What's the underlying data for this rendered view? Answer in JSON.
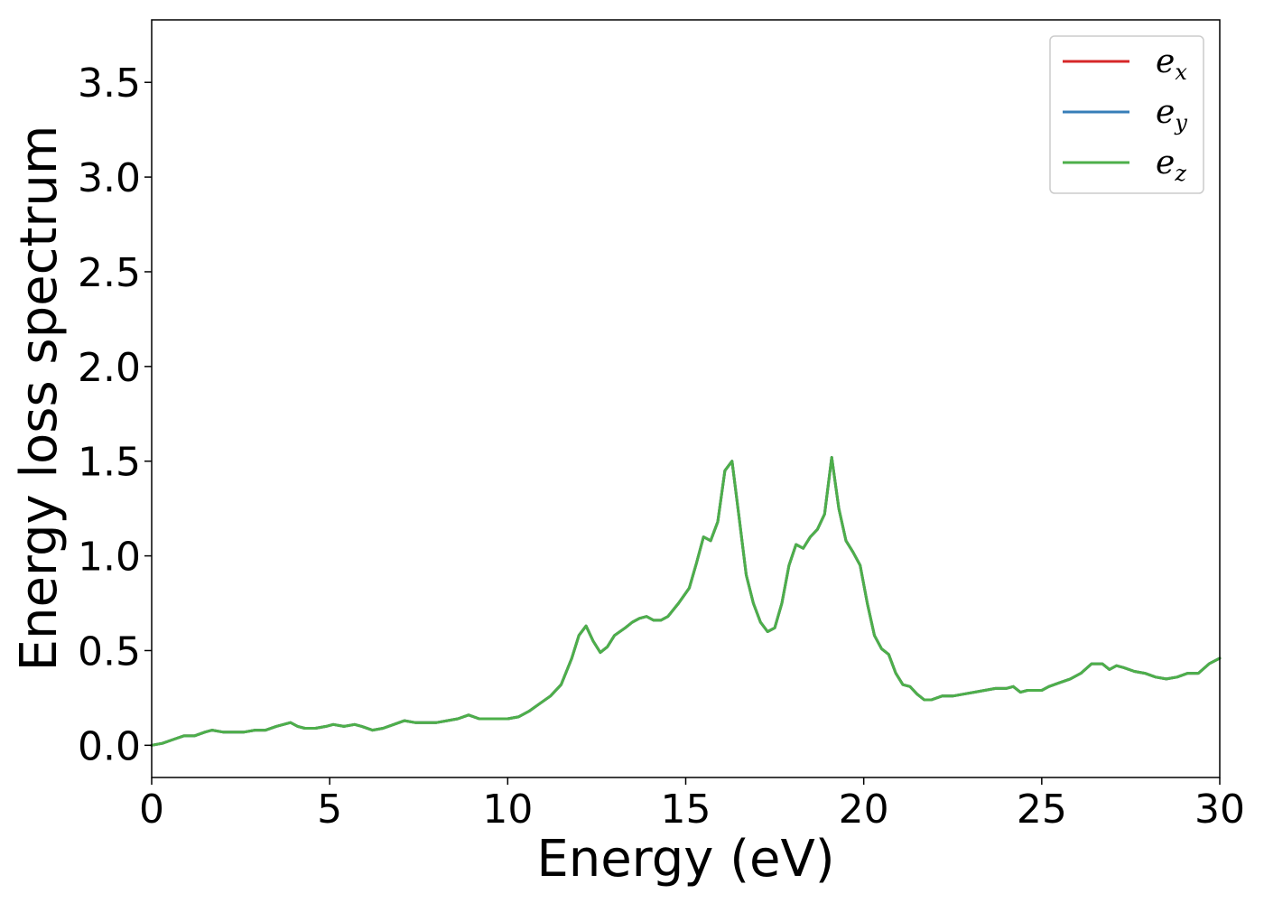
{
  "chart_data": {
    "type": "line",
    "title": "",
    "xlabel": "Energy (eV)",
    "ylabel": "Energy loss spectrum",
    "xlim": [
      0,
      30
    ],
    "ylim": [
      -0.17,
      3.83
    ],
    "xticks": [
      0,
      5,
      10,
      15,
      20,
      25,
      30
    ],
    "xtick_labels": [
      "0",
      "5",
      "10",
      "15",
      "20",
      "25",
      "30"
    ],
    "yticks": [
      0.0,
      0.5,
      1.0,
      1.5,
      2.0,
      2.5,
      3.0,
      3.5
    ],
    "ytick_labels": [
      "0.0",
      "0.5",
      "1.0",
      "1.5",
      "2.0",
      "2.5",
      "3.0",
      "3.5"
    ],
    "grid": false,
    "legend_position": "top-right",
    "series": [
      {
        "name": "e",
        "subscript": "x",
        "color": "#d62728",
        "x": [
          0,
          0.3,
          0.6,
          0.9,
          1.2,
          1.5,
          1.7,
          2.0,
          2.3,
          2.6,
          2.9,
          3.2,
          3.5,
          3.7,
          3.9,
          4.1,
          4.3,
          4.6,
          4.9,
          5.1,
          5.4,
          5.7,
          5.9,
          6.2,
          6.5,
          6.8,
          7.1,
          7.4,
          7.7,
          8.0,
          8.3,
          8.6,
          8.9,
          9.2,
          9.5,
          9.8,
          10.0,
          10.3,
          10.6,
          10.9,
          11.2,
          11.5,
          11.8,
          12.0,
          12.2,
          12.4,
          12.6,
          12.8,
          13.0,
          13.3,
          13.5,
          13.7,
          13.9,
          14.1,
          14.3,
          14.5,
          14.8,
          15.1,
          15.3,
          15.5,
          15.7,
          15.9,
          16.1,
          16.3,
          16.5,
          16.7,
          16.9,
          17.1,
          17.3,
          17.5,
          17.7,
          17.9,
          18.1,
          18.3,
          18.5,
          18.7,
          18.9,
          19.1,
          19.3,
          19.5,
          19.7,
          19.9,
          20.1,
          20.3,
          20.5,
          20.7,
          20.9,
          21.1,
          21.3,
          21.5,
          21.7,
          21.9,
          22.2,
          22.5,
          22.8,
          23.1,
          23.4,
          23.7,
          24.0,
          24.2,
          24.4,
          24.6,
          24.8,
          25.0,
          25.2,
          25.5,
          25.8,
          26.1,
          26.4,
          26.7,
          26.9,
          27.1,
          27.3,
          27.6,
          27.9,
          28.2,
          28.5,
          28.8,
          29.1,
          29.4,
          29.7,
          30.0
        ],
        "y": [
          0.0,
          0.01,
          0.03,
          0.05,
          0.05,
          0.07,
          0.08,
          0.07,
          0.07,
          0.07,
          0.08,
          0.08,
          0.1,
          0.11,
          0.12,
          0.1,
          0.09,
          0.09,
          0.1,
          0.11,
          0.1,
          0.11,
          0.1,
          0.08,
          0.09,
          0.11,
          0.13,
          0.12,
          0.12,
          0.12,
          0.13,
          0.14,
          0.16,
          0.14,
          0.14,
          0.14,
          0.14,
          0.15,
          0.18,
          0.22,
          0.26,
          0.32,
          0.46,
          0.58,
          0.63,
          0.55,
          0.49,
          0.52,
          0.58,
          0.62,
          0.65,
          0.67,
          0.68,
          0.66,
          0.66,
          0.68,
          0.75,
          0.83,
          0.96,
          1.1,
          1.08,
          1.18,
          1.45,
          1.5,
          1.2,
          0.9,
          0.75,
          0.65,
          0.6,
          0.62,
          0.75,
          0.95,
          1.06,
          1.04,
          1.1,
          1.14,
          1.22,
          1.52,
          1.25,
          1.08,
          1.02,
          0.95,
          0.75,
          0.58,
          0.51,
          0.48,
          0.38,
          0.32,
          0.31,
          0.27,
          0.24,
          0.24,
          0.26,
          0.26,
          0.27,
          0.28,
          0.29,
          0.3,
          0.3,
          0.31,
          0.28,
          0.29,
          0.29,
          0.29,
          0.31,
          0.33,
          0.35,
          0.38,
          0.43,
          0.43,
          0.4,
          0.42,
          0.41,
          0.39,
          0.38,
          0.36,
          0.35,
          0.36,
          0.38,
          0.38,
          0.43,
          0.46
        ]
      },
      {
        "name": "e",
        "subscript": "y",
        "color": "#377eb8",
        "x": [
          0,
          0.3,
          0.6,
          0.9,
          1.2,
          1.5,
          1.7,
          2.0,
          2.3,
          2.6,
          2.9,
          3.2,
          3.5,
          3.7,
          3.9,
          4.1,
          4.3,
          4.6,
          4.9,
          5.1,
          5.4,
          5.7,
          5.9,
          6.2,
          6.5,
          6.8,
          7.1,
          7.4,
          7.7,
          8.0,
          8.3,
          8.6,
          8.9,
          9.2,
          9.5,
          9.8,
          10.0,
          10.3,
          10.6,
          10.9,
          11.2,
          11.5,
          11.8,
          12.0,
          12.2,
          12.4,
          12.6,
          12.8,
          13.0,
          13.3,
          13.5,
          13.7,
          13.9,
          14.1,
          14.3,
          14.5,
          14.8,
          15.1,
          15.3,
          15.5,
          15.7,
          15.9,
          16.1,
          16.3,
          16.5,
          16.7,
          16.9,
          17.1,
          17.3,
          17.5,
          17.7,
          17.9,
          18.1,
          18.3,
          18.5,
          18.7,
          18.9,
          19.1,
          19.3,
          19.5,
          19.7,
          19.9,
          20.1,
          20.3,
          20.5,
          20.7,
          20.9,
          21.1,
          21.3,
          21.5,
          21.7,
          21.9,
          22.2,
          22.5,
          22.8,
          23.1,
          23.4,
          23.7,
          24.0,
          24.2,
          24.4,
          24.6,
          24.8,
          25.0,
          25.2,
          25.5,
          25.8,
          26.1,
          26.4,
          26.7,
          26.9,
          27.1,
          27.3,
          27.6,
          27.9,
          28.2,
          28.5,
          28.8,
          29.1,
          29.4,
          29.7,
          30.0
        ],
        "y": [
          0.0,
          0.01,
          0.03,
          0.05,
          0.05,
          0.07,
          0.08,
          0.07,
          0.07,
          0.07,
          0.08,
          0.08,
          0.1,
          0.11,
          0.12,
          0.1,
          0.09,
          0.09,
          0.1,
          0.11,
          0.1,
          0.11,
          0.1,
          0.08,
          0.09,
          0.11,
          0.13,
          0.12,
          0.12,
          0.12,
          0.13,
          0.14,
          0.16,
          0.14,
          0.14,
          0.14,
          0.14,
          0.15,
          0.18,
          0.22,
          0.26,
          0.32,
          0.46,
          0.58,
          0.63,
          0.55,
          0.49,
          0.52,
          0.58,
          0.62,
          0.65,
          0.67,
          0.68,
          0.66,
          0.66,
          0.68,
          0.75,
          0.83,
          0.96,
          1.1,
          1.08,
          1.18,
          1.45,
          1.5,
          1.2,
          0.9,
          0.75,
          0.65,
          0.6,
          0.62,
          0.75,
          0.95,
          1.06,
          1.04,
          1.1,
          1.14,
          1.22,
          1.52,
          1.25,
          1.08,
          1.02,
          0.95,
          0.75,
          0.58,
          0.51,
          0.48,
          0.38,
          0.32,
          0.31,
          0.27,
          0.24,
          0.24,
          0.26,
          0.26,
          0.27,
          0.28,
          0.29,
          0.3,
          0.3,
          0.31,
          0.28,
          0.29,
          0.29,
          0.29,
          0.31,
          0.33,
          0.35,
          0.38,
          0.43,
          0.43,
          0.4,
          0.42,
          0.41,
          0.39,
          0.38,
          0.36,
          0.35,
          0.36,
          0.38,
          0.38,
          0.43,
          0.46
        ]
      },
      {
        "name": "e",
        "subscript": "z",
        "color": "#4daf4a",
        "x": [
          0,
          0.3,
          0.6,
          0.9,
          1.2,
          1.5,
          1.7,
          2.0,
          2.3,
          2.6,
          2.9,
          3.2,
          3.5,
          3.7,
          3.9,
          4.1,
          4.3,
          4.6,
          4.9,
          5.1,
          5.4,
          5.7,
          5.9,
          6.2,
          6.5,
          6.8,
          7.1,
          7.4,
          7.7,
          8.0,
          8.3,
          8.6,
          8.9,
          9.2,
          9.5,
          9.8,
          10.0,
          10.3,
          10.6,
          10.9,
          11.2,
          11.5,
          11.8,
          12.0,
          12.2,
          12.4,
          12.6,
          12.8,
          13.0,
          13.3,
          13.5,
          13.7,
          13.9,
          14.1,
          14.3,
          14.5,
          14.8,
          15.1,
          15.3,
          15.5,
          15.7,
          15.9,
          16.1,
          16.3,
          16.5,
          16.7,
          16.9,
          17.1,
          17.3,
          17.5,
          17.7,
          17.9,
          18.1,
          18.3,
          18.5,
          18.7,
          18.9,
          19.1,
          19.3,
          19.5,
          19.7,
          19.9,
          20.1,
          20.3,
          20.5,
          20.7,
          20.9,
          21.1,
          21.3,
          21.5,
          21.7,
          21.9,
          22.2,
          22.5,
          22.8,
          23.1,
          23.4,
          23.7,
          24.0,
          24.2,
          24.4,
          24.6,
          24.8,
          25.0,
          25.2,
          25.5,
          25.8,
          26.1,
          26.4,
          26.7,
          26.9,
          27.1,
          27.3,
          27.6,
          27.9,
          28.2,
          28.5,
          28.8,
          29.1,
          29.4,
          29.7,
          30.0
        ],
        "y": [
          0.0,
          0.01,
          0.03,
          0.05,
          0.05,
          0.07,
          0.08,
          0.07,
          0.07,
          0.07,
          0.08,
          0.08,
          0.1,
          0.11,
          0.12,
          0.1,
          0.09,
          0.09,
          0.1,
          0.11,
          0.1,
          0.11,
          0.1,
          0.08,
          0.09,
          0.11,
          0.13,
          0.12,
          0.12,
          0.12,
          0.13,
          0.14,
          0.16,
          0.14,
          0.14,
          0.14,
          0.14,
          0.15,
          0.18,
          0.22,
          0.26,
          0.32,
          0.46,
          0.58,
          0.63,
          0.55,
          0.49,
          0.52,
          0.58,
          0.62,
          0.65,
          0.67,
          0.68,
          0.66,
          0.66,
          0.68,
          0.75,
          0.83,
          0.96,
          1.1,
          1.08,
          1.18,
          1.45,
          1.5,
          1.2,
          0.9,
          0.75,
          0.65,
          0.6,
          0.62,
          0.75,
          0.95,
          1.06,
          1.04,
          1.1,
          1.14,
          1.22,
          1.52,
          1.25,
          1.08,
          1.02,
          0.95,
          0.75,
          0.58,
          0.51,
          0.48,
          0.38,
          0.32,
          0.31,
          0.27,
          0.24,
          0.24,
          0.26,
          0.26,
          0.27,
          0.28,
          0.29,
          0.3,
          0.3,
          0.31,
          0.28,
          0.29,
          0.29,
          0.29,
          0.31,
          0.33,
          0.35,
          0.38,
          0.43,
          0.43,
          0.4,
          0.42,
          0.41,
          0.39,
          0.38,
          0.36,
          0.35,
          0.36,
          0.38,
          0.38,
          0.43,
          0.46
        ]
      }
    ]
  }
}
